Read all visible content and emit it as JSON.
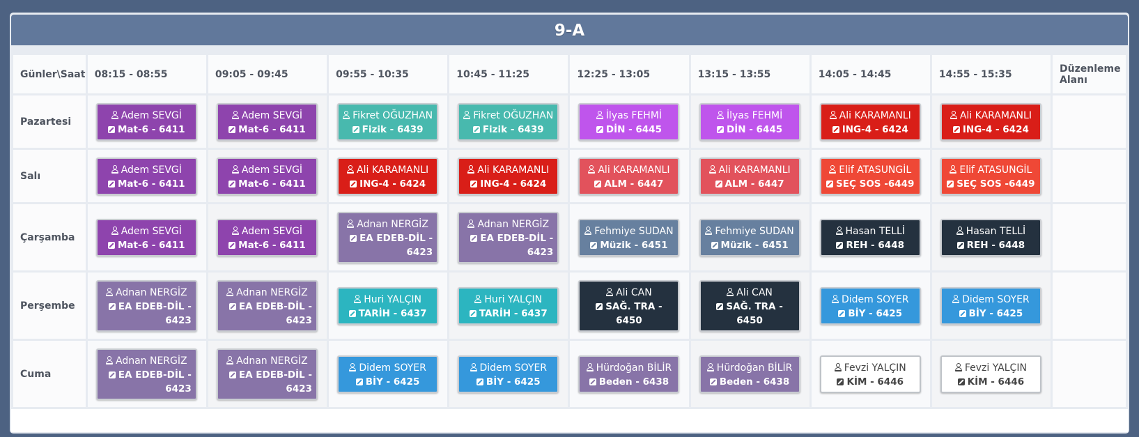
{
  "title": "9-A",
  "headers": [
    "Günler\\Saat",
    "08:15 - 08:55",
    "09:05 - 09:45",
    "09:55 - 10:35",
    "10:45 - 11:25",
    "12:25 - 13:05",
    "13:15 - 13:55",
    "14:05 - 14:45",
    "14:55 - 15:35",
    "Düzenleme Alanı"
  ],
  "colors": {
    "purple": "#8e44ad",
    "teal": "#48b9ae",
    "magenta": "#bf55ec",
    "red": "#d91e18",
    "coral": "#e2525c",
    "orange": "#ef4836",
    "lavender": "#8874a8",
    "slate": "#67809f",
    "dark": "#24313f",
    "cyan": "#2cb5c0",
    "blue": "#3598dc",
    "white": "#ffffff"
  },
  "icons": {
    "teacher": "user-icon",
    "course": "edit-icon"
  },
  "rows": [
    {
      "day": "Pazartesi",
      "cells": [
        {
          "teacher": "Adem SEVGİ",
          "course": "Mat-6 - 6411",
          "color": "purple"
        },
        {
          "teacher": "Adem SEVGİ",
          "course": "Mat-6 - 6411",
          "color": "purple"
        },
        {
          "teacher": "Fikret OĞUZHAN",
          "course": "Fizik - 6439",
          "color": "teal"
        },
        {
          "teacher": "Fikret OĞUZHAN",
          "course": "Fizik - 6439",
          "color": "teal"
        },
        {
          "teacher": "İlyas FEHMİ",
          "course": "DİN - 6445",
          "color": "magenta"
        },
        {
          "teacher": "İlyas FEHMİ",
          "course": "DİN - 6445",
          "color": "magenta"
        },
        {
          "teacher": "Ali KARAMANLI",
          "course": "ING-4 - 6424",
          "color": "red"
        },
        {
          "teacher": "Ali KARAMANLI",
          "course": "ING-4 - 6424",
          "color": "red"
        }
      ]
    },
    {
      "day": "Salı",
      "cells": [
        {
          "teacher": "Adem SEVGİ",
          "course": "Mat-6 - 6411",
          "color": "purple"
        },
        {
          "teacher": "Adem SEVGİ",
          "course": "Mat-6 - 6411",
          "color": "purple"
        },
        {
          "teacher": "Ali KARAMANLI",
          "course": "ING-4 - 6424",
          "color": "red"
        },
        {
          "teacher": "Ali KARAMANLI",
          "course": "ING-4 - 6424",
          "color": "red"
        },
        {
          "teacher": "Ali KARAMANLI",
          "course": "ALM - 6447",
          "color": "coral"
        },
        {
          "teacher": "Ali KARAMANLI",
          "course": "ALM - 6447",
          "color": "coral"
        },
        {
          "teacher": "Elif ATASUNGİL",
          "course": "SEÇ SOS  -6449",
          "color": "orange"
        },
        {
          "teacher": "Elif ATASUNGİL",
          "course": "SEÇ SOS  -6449",
          "color": "orange"
        }
      ]
    },
    {
      "day": "Çarşamba",
      "cells": [
        {
          "teacher": "Adem SEVGİ",
          "course": "Mat-6 - 6411",
          "color": "purple"
        },
        {
          "teacher": "Adem SEVGİ",
          "course": "Mat-6 - 6411",
          "color": "purple"
        },
        {
          "teacher": "Adnan NERGİZ",
          "course": "EA EDEB-DİL - 6423",
          "color": "lavender",
          "wrap": true
        },
        {
          "teacher": "Adnan NERGİZ",
          "course": "EA EDEB-DİL - 6423",
          "color": "lavender",
          "wrap": true
        },
        {
          "teacher": "Fehmiye SUDAN",
          "course": "Müzik - 6451",
          "color": "slate"
        },
        {
          "teacher": "Fehmiye SUDAN",
          "course": "Müzik - 6451",
          "color": "slate"
        },
        {
          "teacher": "Hasan TELLİ",
          "course": "REH - 6448",
          "color": "dark"
        },
        {
          "teacher": "Hasan TELLİ",
          "course": "REH - 6448",
          "color": "dark"
        }
      ]
    },
    {
      "day": "Perşembe",
      "cells": [
        {
          "teacher": "Adnan NERGİZ",
          "course": "EA EDEB-DİL - 6423",
          "color": "lavender",
          "wrap": true
        },
        {
          "teacher": "Adnan NERGİZ",
          "course": "EA EDEB-DİL - 6423",
          "color": "lavender",
          "wrap": true
        },
        {
          "teacher": "Huri YALÇIN",
          "course": "TARİH - 6437",
          "color": "cyan"
        },
        {
          "teacher": "Huri YALÇIN",
          "course": "TARİH - 6437",
          "color": "cyan"
        },
        {
          "teacher": "Ali CAN",
          "course": "SAĞ. TRA - 6450",
          "color": "dark"
        },
        {
          "teacher": "Ali CAN",
          "course": "SAĞ. TRA - 6450",
          "color": "dark"
        },
        {
          "teacher": "Didem SOYER",
          "course": "BİY - 6425",
          "color": "blue"
        },
        {
          "teacher": "Didem SOYER",
          "course": "BİY - 6425",
          "color": "blue"
        }
      ]
    },
    {
      "day": "Cuma",
      "cells": [
        {
          "teacher": "Adnan NERGİZ",
          "course": "EA EDEB-DİL - 6423",
          "color": "lavender",
          "wrap": true
        },
        {
          "teacher": "Adnan NERGİZ",
          "course": "EA EDEB-DİL - 6423",
          "color": "lavender",
          "wrap": true
        },
        {
          "teacher": "Didem SOYER",
          "course": "BİY - 6425",
          "color": "blue"
        },
        {
          "teacher": "Didem SOYER",
          "course": "BİY - 6425",
          "color": "blue"
        },
        {
          "teacher": "Hürdoğan BİLİR",
          "course": "Beden - 6438",
          "color": "lavender"
        },
        {
          "teacher": "Hürdoğan BİLİR",
          "course": "Beden - 6438",
          "color": "lavender"
        },
        {
          "teacher": "Fevzi YALÇIN",
          "course": "KİM - 6446",
          "color": "white"
        },
        {
          "teacher": "Fevzi YALÇIN",
          "course": "KİM - 6446",
          "color": "white"
        }
      ]
    }
  ]
}
